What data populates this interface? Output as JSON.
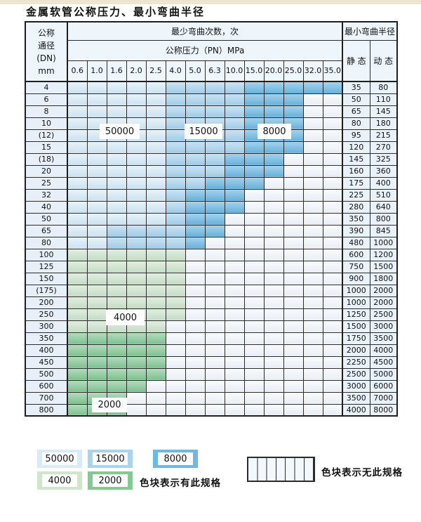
{
  "page_title": "金属软管公称压力、最小弯曲半径",
  "colors": {
    "c1": "#d8ecf8",
    "c2": "#a9d4ee",
    "c3": "#6db9e3",
    "g1": "#cfe5cc",
    "g2": "#84c994"
  },
  "table": {
    "corner_header": "公称\n通径\n(DN)\nmm",
    "bend_cycles_header": "最少弯曲次数，次",
    "pressure_header": "公称压力（PN）MPa",
    "radius_header": "最小弯曲半径",
    "static_header": "静 态",
    "dynamic_header": "动 态",
    "pressure_columns": [
      "0.6",
      "1.0",
      "1.6",
      "2.0",
      "2.5",
      "4.0",
      "5.0",
      "6.3",
      "10.0",
      "15.0",
      "20.0",
      "25.0",
      "32.0",
      "35.0"
    ],
    "cell_legend_meaning": {
      "c1": "50000",
      "c2": "15000",
      "c3": "8000",
      "g1": "4000",
      "g2": "2000",
      "h": "无此规格"
    },
    "rows": [
      {
        "dn": "4",
        "cells": [
          "c1",
          "c1",
          "c1",
          "c1",
          "c1",
          "c2",
          "c2",
          "c2",
          "c2",
          "c3",
          "c3",
          "c3",
          "c3",
          "c3"
        ],
        "static": "35",
        "dynamic": "80"
      },
      {
        "dn": "6",
        "cells": [
          "c1",
          "c1",
          "c1",
          "c1",
          "c1",
          "c2",
          "c2",
          "c2",
          "c2",
          "c3",
          "c3",
          "c3",
          "h",
          "h"
        ],
        "static": "50",
        "dynamic": "110"
      },
      {
        "dn": "8",
        "cells": [
          "c1",
          "c1",
          "c1",
          "c1",
          "c1",
          "c2",
          "c2",
          "c2",
          "c2",
          "c3",
          "c3",
          "c3",
          "h",
          "h"
        ],
        "static": "65",
        "dynamic": "145"
      },
      {
        "dn": "10",
        "cells": [
          "c1",
          "c1",
          "c1",
          "c1",
          "c1",
          "c2",
          "c2",
          "c2",
          "c2",
          "c3",
          "c3",
          "c3",
          "h",
          "h"
        ],
        "static": "80",
        "dynamic": "180"
      },
      {
        "dn": "(12)",
        "cells": [
          "c1",
          "c1",
          "c1",
          "c1",
          "c1",
          "c2",
          "c2",
          "c2",
          "c2",
          "c3",
          "c3",
          "c3",
          "h",
          "h"
        ],
        "static": "95",
        "dynamic": "215"
      },
      {
        "dn": "15",
        "cells": [
          "c1",
          "c1",
          "c1",
          "c1",
          "c1",
          "c2",
          "c2",
          "c2",
          "c2",
          "c3",
          "c3",
          "c3",
          "h",
          "h"
        ],
        "static": "120",
        "dynamic": "270"
      },
      {
        "dn": "(18)",
        "cells": [
          "c1",
          "c1",
          "c1",
          "c1",
          "c1",
          "c2",
          "c2",
          "c2",
          "c3",
          "c3",
          "c3",
          "h",
          "h",
          "h"
        ],
        "static": "145",
        "dynamic": "325"
      },
      {
        "dn": "20",
        "cells": [
          "c1",
          "c1",
          "c1",
          "c1",
          "c1",
          "c2",
          "c2",
          "c2",
          "c3",
          "c3",
          "c3",
          "h",
          "h",
          "h"
        ],
        "static": "160",
        "dynamic": "360"
      },
      {
        "dn": "25",
        "cells": [
          "c1",
          "c1",
          "c1",
          "c1",
          "c1",
          "c2",
          "c2",
          "c3",
          "c3",
          "c3",
          "h",
          "h",
          "h",
          "h"
        ],
        "static": "175",
        "dynamic": "400"
      },
      {
        "dn": "32",
        "cells": [
          "c1",
          "c1",
          "c1",
          "c1",
          "c1",
          "c2",
          "c3",
          "c3",
          "c3",
          "h",
          "h",
          "h",
          "h",
          "h"
        ],
        "static": "225",
        "dynamic": "510"
      },
      {
        "dn": "40",
        "cells": [
          "c1",
          "c1",
          "c1",
          "c1",
          "c1",
          "c2",
          "c3",
          "c3",
          "c3",
          "h",
          "h",
          "h",
          "h",
          "h"
        ],
        "static": "280",
        "dynamic": "640"
      },
      {
        "dn": "50",
        "cells": [
          "c1",
          "c1",
          "c1",
          "c1",
          "c1",
          "c2",
          "c3",
          "c3",
          "h",
          "h",
          "h",
          "h",
          "h",
          "h"
        ],
        "static": "350",
        "dynamic": "800"
      },
      {
        "dn": "65",
        "cells": [
          "c1",
          "c1",
          "c2",
          "c2",
          "c2",
          "c2",
          "c3",
          "c3",
          "h",
          "h",
          "h",
          "h",
          "h",
          "h"
        ],
        "static": "390",
        "dynamic": "845"
      },
      {
        "dn": "80",
        "cells": [
          "c1",
          "c1",
          "c2",
          "c2",
          "c2",
          "c2",
          "c3",
          "h",
          "h",
          "h",
          "h",
          "h",
          "h",
          "h"
        ],
        "static": "480",
        "dynamic": "1000"
      },
      {
        "dn": "100",
        "cells": [
          "g1",
          "g1",
          "g1",
          "g1",
          "g1",
          "g1",
          "h",
          "h",
          "h",
          "h",
          "h",
          "h",
          "h",
          "h"
        ],
        "static": "600",
        "dynamic": "1200"
      },
      {
        "dn": "125",
        "cells": [
          "g1",
          "g1",
          "g1",
          "g1",
          "g1",
          "g1",
          "h",
          "h",
          "h",
          "h",
          "h",
          "h",
          "h",
          "h"
        ],
        "static": "750",
        "dynamic": "1500"
      },
      {
        "dn": "150",
        "cells": [
          "g1",
          "g1",
          "g1",
          "g1",
          "g1",
          "g1",
          "h",
          "h",
          "h",
          "h",
          "h",
          "h",
          "h",
          "h"
        ],
        "static": "900",
        "dynamic": "1800"
      },
      {
        "dn": "(175)",
        "cells": [
          "g1",
          "g1",
          "g1",
          "g1",
          "g1",
          "g1",
          "h",
          "h",
          "h",
          "h",
          "h",
          "h",
          "h",
          "h"
        ],
        "static": "1000",
        "dynamic": "2000"
      },
      {
        "dn": "200",
        "cells": [
          "g1",
          "g1",
          "g1",
          "g1",
          "g1",
          "g1",
          "h",
          "h",
          "h",
          "h",
          "h",
          "h",
          "h",
          "h"
        ],
        "static": "1000",
        "dynamic": "2000"
      },
      {
        "dn": "250",
        "cells": [
          "g1",
          "g1",
          "g1",
          "g1",
          "g1",
          "g1",
          "h",
          "h",
          "h",
          "h",
          "h",
          "h",
          "h",
          "h"
        ],
        "static": "1250",
        "dynamic": "2500"
      },
      {
        "dn": "300",
        "cells": [
          "g1",
          "g1",
          "g1",
          "g1",
          "g1",
          "h",
          "h",
          "h",
          "h",
          "h",
          "h",
          "h",
          "h",
          "h"
        ],
        "static": "1500",
        "dynamic": "3000"
      },
      {
        "dn": "350",
        "cells": [
          "g2",
          "g2",
          "g2",
          "g2",
          "g2",
          "h",
          "h",
          "h",
          "h",
          "h",
          "h",
          "h",
          "h",
          "h"
        ],
        "static": "1750",
        "dynamic": "3500"
      },
      {
        "dn": "400",
        "cells": [
          "g2",
          "g2",
          "g2",
          "g2",
          "g2",
          "h",
          "h",
          "h",
          "h",
          "h",
          "h",
          "h",
          "h",
          "h"
        ],
        "static": "2000",
        "dynamic": "4000"
      },
      {
        "dn": "450",
        "cells": [
          "g2",
          "g2",
          "g2",
          "g2",
          "g2",
          "h",
          "h",
          "h",
          "h",
          "h",
          "h",
          "h",
          "h",
          "h"
        ],
        "static": "2250",
        "dynamic": "4500"
      },
      {
        "dn": "500",
        "cells": [
          "g2",
          "g2",
          "g2",
          "g2",
          "g2",
          "h",
          "h",
          "h",
          "h",
          "h",
          "h",
          "h",
          "h",
          "h"
        ],
        "static": "2500",
        "dynamic": "5000"
      },
      {
        "dn": "600",
        "cells": [
          "g2",
          "g2",
          "g2",
          "g2",
          "h",
          "h",
          "h",
          "h",
          "h",
          "h",
          "h",
          "h",
          "h",
          "h"
        ],
        "static": "3000",
        "dynamic": "6000"
      },
      {
        "dn": "700",
        "cells": [
          "g2",
          "g2",
          "g2",
          "h",
          "h",
          "h",
          "h",
          "h",
          "h",
          "h",
          "h",
          "h",
          "h",
          "h"
        ],
        "static": "3500",
        "dynamic": "7000"
      },
      {
        "dn": "800",
        "cells": [
          "g2",
          "g2",
          "g2",
          "h",
          "h",
          "h",
          "h",
          "h",
          "h",
          "h",
          "h",
          "h",
          "h",
          "h"
        ],
        "static": "4000",
        "dynamic": "8000"
      }
    ]
  },
  "cycle_labels": {
    "l50000": "50000",
    "l15000": "15000",
    "l8000": "8000",
    "l4000": "4000",
    "l2000": "2000"
  },
  "legend": {
    "swatches": [
      {
        "value": "50000",
        "code": "c1"
      },
      {
        "value": "15000",
        "code": "c2"
      },
      {
        "value": "8000",
        "code": "c3"
      },
      {
        "value": "4000",
        "code": "g1"
      },
      {
        "value": "2000",
        "code": "g2"
      }
    ],
    "has_spec_label": "色块表示有此规格",
    "no_spec_label": "色块表示无此规格"
  }
}
